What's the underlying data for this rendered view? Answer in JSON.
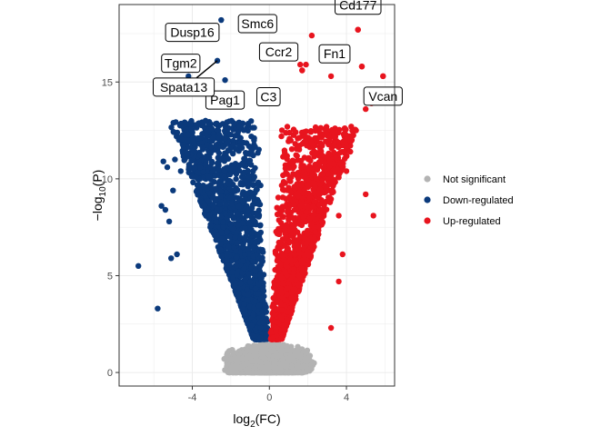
{
  "chart_data": {
    "type": "scatter",
    "title": "",
    "xlabel_base": "log",
    "xlabel_sub": "2",
    "xlabel_rest": "(FC)",
    "ylabel_prefix": "−log",
    "ylabel_sub": "10",
    "ylabel_rest": "(P)",
    "xlim": [
      -7.8,
      6.5
    ],
    "ylim": [
      -0.7,
      19.0
    ],
    "x_ticks": [
      -4,
      0,
      4
    ],
    "x_tick_labels": [
      "-4",
      "0",
      "4"
    ],
    "y_ticks": [
      0,
      5,
      10,
      15
    ],
    "y_tick_labels": [
      "0",
      "5",
      "10",
      "15"
    ],
    "grid": true,
    "legend_position": "right",
    "series": [
      {
        "name": "Not significant",
        "color": "#b3b3b3",
        "count": 2400
      },
      {
        "name": "Down-regulated",
        "color": "#0b3a7c",
        "count": 1900
      },
      {
        "name": "Up-regulated",
        "color": "#e8141e",
        "count": 1500
      }
    ],
    "outliers_down": [
      [
        -6.8,
        5.5
      ],
      [
        -5.8,
        3.3
      ],
      [
        -5.6,
        8.6
      ],
      [
        -5.4,
        8.4
      ],
      [
        -5.2,
        7.8
      ],
      [
        -5.5,
        10.9
      ],
      [
        -5.3,
        10.6
      ],
      [
        -5.0,
        9.4
      ],
      [
        -4.9,
        11.0
      ],
      [
        -4.8,
        6.1
      ],
      [
        -5.1,
        5.9
      ],
      [
        -4.6,
        10.4
      ],
      [
        -4.4,
        14.7
      ],
      [
        -4.2,
        15.3
      ],
      [
        -4.3,
        15.7
      ],
      [
        -4.1,
        16.2
      ],
      [
        -3.9,
        15.8
      ],
      [
        -3.7,
        12.1
      ]
    ],
    "outliers_up": [
      [
        2.2,
        17.4
      ],
      [
        1.6,
        15.9
      ],
      [
        1.7,
        15.6
      ],
      [
        3.2,
        15.3
      ],
      [
        4.6,
        17.7
      ],
      [
        4.8,
        15.8
      ],
      [
        5.9,
        15.3
      ],
      [
        5.3,
        13.9
      ],
      [
        5.0,
        13.6
      ],
      [
        4.5,
        12.5
      ],
      [
        5.0,
        9.2
      ],
      [
        5.4,
        8.1
      ],
      [
        4.2,
        11.4
      ],
      [
        4.0,
        10.4
      ],
      [
        3.6,
        8.1
      ],
      [
        3.8,
        6.1
      ],
      [
        3.2,
        2.3
      ],
      [
        3.6,
        4.7
      ]
    ],
    "labels": [
      {
        "text": "Smc6",
        "x": -2.5,
        "y": 18.2,
        "side": "right"
      },
      {
        "text": "Dusp16",
        "x": -4.0,
        "y": 16.3,
        "side": "above"
      },
      {
        "text": "Tgm2",
        "x": -4.6,
        "y": 14.7,
        "side": "above"
      },
      {
        "text": "Pag1",
        "x": -2.3,
        "y": 15.1,
        "side": "below"
      },
      {
        "text": "Spata13",
        "x": -2.7,
        "y": 16.1,
        "side": "belowleft"
      },
      {
        "text": "Ccr2",
        "x": 1.9,
        "y": 15.9,
        "side": "aboveleft"
      },
      {
        "text": "C3",
        "x": 1.7,
        "y": 15.6,
        "side": "belowleft"
      },
      {
        "text": "Cd177",
        "x": 4.6,
        "y": 17.7,
        "side": "above"
      },
      {
        "text": "Fn1",
        "x": 4.8,
        "y": 15.8,
        "side": "aboveleft"
      },
      {
        "text": "Vcan",
        "x": 5.9,
        "y": 15.3,
        "side": "below"
      }
    ]
  }
}
